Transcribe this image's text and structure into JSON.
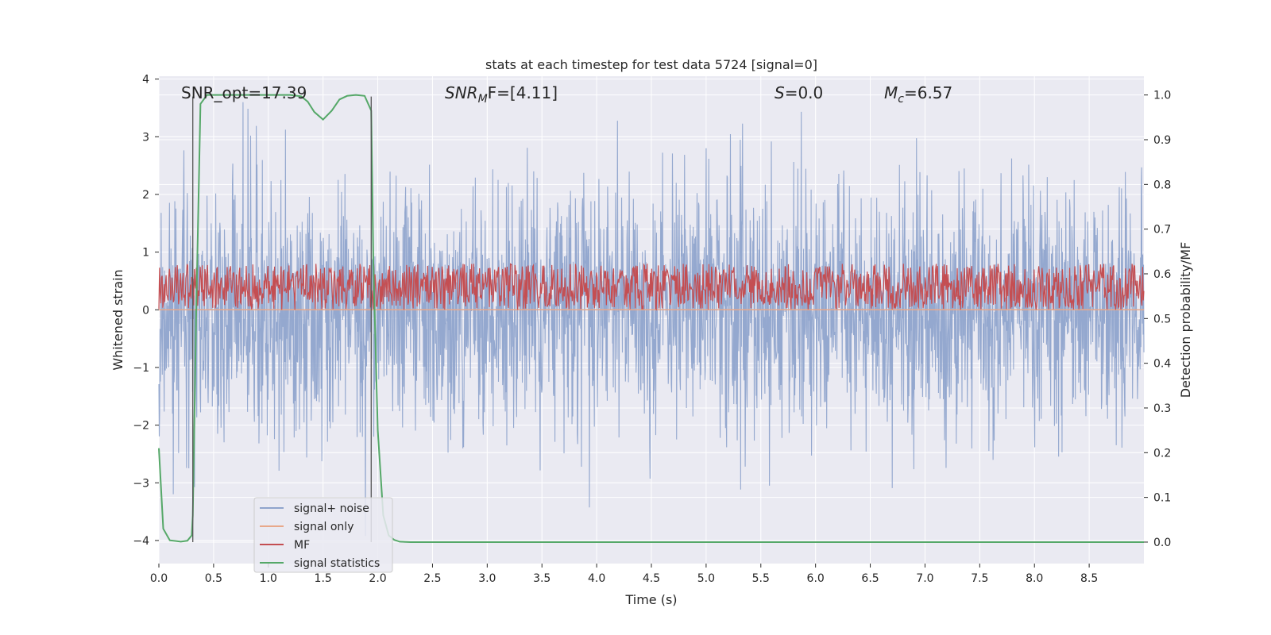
{
  "chart_data": {
    "type": "line",
    "title": "stats at each timestep for test data 5724 [signal=0]",
    "xlabel": "Time (s)",
    "ylabel_left": "Whitened strain",
    "ylabel_right": "Detection probability/MF",
    "xlim": [
      0.0,
      9.0
    ],
    "ylim_left": [
      -4.4,
      4.05
    ],
    "ylim_right": [
      -0.048,
      1.042
    ],
    "x_ticks": [
      0.0,
      0.5,
      1.0,
      1.5,
      2.0,
      2.5,
      3.0,
      3.5,
      4.0,
      4.5,
      5.0,
      5.5,
      6.0,
      6.5,
      7.0,
      7.5,
      8.0,
      8.5
    ],
    "x_tick_labels": [
      "0.0",
      "0.5",
      "1.0",
      "1.5",
      "2.0",
      "2.5",
      "3.0",
      "3.5",
      "4.0",
      "4.5",
      "5.0",
      "5.5",
      "6.0",
      "6.5",
      "7.0",
      "7.5",
      "8.0",
      "8.5"
    ],
    "y_left_ticks": [
      4,
      3,
      2,
      1,
      0,
      -1,
      -2,
      -3,
      -4
    ],
    "y_left_tick_labels": [
      "4",
      "3",
      "2",
      "1",
      "0",
      "−1",
      "−2",
      "−3",
      "−4"
    ],
    "y_right_ticks": [
      1.0,
      0.9,
      0.8,
      0.7,
      0.6,
      0.5,
      0.4,
      0.3,
      0.2,
      0.1,
      0.0
    ],
    "y_right_tick_labels": [
      "1.0",
      "0.9",
      "0.8",
      "0.7",
      "0.6",
      "0.5",
      "0.4",
      "0.3",
      "0.2",
      "0.1",
      "0.0"
    ],
    "grid": true,
    "legend_position": "lower-left",
    "annotations": {
      "snr_opt": "SNR_opt=17.39",
      "snr_mf_sym": "SNR",
      "snr_mf_sub": "M",
      "snr_mf_rest": "F=[4.11]",
      "s_sym": "S",
      "s_rest": "=0.0",
      "mc_sym": "M",
      "mc_sub": "c",
      "mc_rest": "=6.57"
    },
    "vlines": [
      0.31,
      1.94
    ],
    "series": [
      {
        "name": "signal+ noise",
        "color": "#8fa4cc",
        "axis": "left",
        "kind": "noise",
        "std": 1.05,
        "peak_positive": 3.68,
        "peak_negative": -3.95
      },
      {
        "name": "signal only",
        "color": "#e8a88a",
        "axis": "left",
        "constant": 0.0
      },
      {
        "name": "MF",
        "color": "#c44e52",
        "axis": "left",
        "kind": "band",
        "low": 0.0,
        "high": 1.0
      },
      {
        "name": "signal statistics",
        "color": "#55a868",
        "axis": "right",
        "x": [
          0.0,
          0.04,
          0.1,
          0.2,
          0.26,
          0.3,
          0.31,
          0.34,
          0.38,
          0.44,
          0.5,
          0.7,
          1.0,
          1.2,
          1.3,
          1.36,
          1.42,
          1.5,
          1.58,
          1.65,
          1.72,
          1.8,
          1.88,
          1.94,
          1.96,
          2.0,
          2.05,
          2.1,
          2.15,
          2.2,
          2.3,
          2.5,
          3.0,
          5.0,
          7.0,
          9.0
        ],
        "y": [
          0.21,
          0.03,
          0.004,
          0.001,
          0.003,
          0.015,
          0.06,
          0.5,
          0.98,
          1.0,
          1.0,
          1.0,
          1.0,
          1.0,
          0.997,
          0.985,
          0.962,
          0.945,
          0.965,
          0.99,
          0.998,
          1.0,
          0.998,
          0.965,
          0.62,
          0.25,
          0.06,
          0.015,
          0.005,
          0.001,
          0.0,
          0.0,
          0.0,
          0.0,
          0.0,
          0.0
        ]
      }
    ]
  }
}
